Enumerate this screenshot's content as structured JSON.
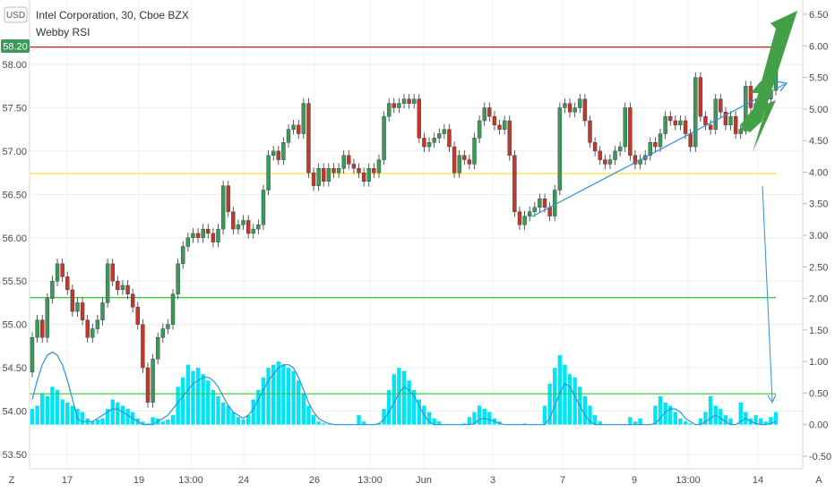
{
  "chart_data": {
    "type": "candlestick",
    "title": "Intel Corporation, 30, Cboe BZX",
    "indicator": "Webby RSI",
    "currency": "USD",
    "axis_mode_left": "Z",
    "axis_mode_right": "A",
    "last_price": "58.20",
    "colors": {
      "up": "#3a9a5a",
      "down": "#c0392b",
      "resistance": "#b71c1c",
      "support_yellow": "#f5e11a",
      "rsi_lines": "#2ecc2e",
      "trend": "#2f8fd8",
      "volume": "#00e5f5",
      "arrow": "#43a047",
      "price_tag": "#3a9a5a"
    },
    "price_axis": {
      "ticks": [
        "58.00",
        "57.50",
        "57.00",
        "56.50",
        "56.00",
        "55.50",
        "55.00",
        "54.50",
        "54.00",
        "53.50"
      ],
      "range": [
        53.45,
        58.4
      ]
    },
    "rsi_axis": {
      "ticks": [
        "6.50",
        "6.00",
        "5.50",
        "5.00",
        "4.50",
        "4.00",
        "3.50",
        "3.00",
        "2.50",
        "2.00",
        "1.50",
        "1.00",
        "0.50",
        "0.00",
        "-0.50"
      ],
      "range": [
        -0.5,
        6.5
      ]
    },
    "x_labels": [
      "17",
      "19",
      "13:00",
      "24",
      "26",
      "13:00",
      "Jun",
      "3",
      "7",
      "9",
      "13:00",
      "14"
    ],
    "horizontal_levels": [
      {
        "name": "resistance",
        "price": 58.2
      },
      {
        "name": "yellow-support",
        "price": 56.74
      },
      {
        "name": "green-upper",
        "price": 55.31
      },
      {
        "name": "green-lower",
        "price": 54.2
      }
    ],
    "candles": [
      [
        54.45,
        54.85
      ],
      [
        54.85,
        55.05
      ],
      [
        55.05,
        54.85
      ],
      [
        54.85,
        55.3
      ],
      [
        55.3,
        55.5
      ],
      [
        55.5,
        55.7
      ],
      [
        55.7,
        55.55
      ],
      [
        55.55,
        55.4
      ],
      [
        55.4,
        55.15
      ],
      [
        55.15,
        55.25
      ],
      [
        55.25,
        55.05
      ],
      [
        55.05,
        54.85
      ],
      [
        54.85,
        54.95
      ],
      [
        54.95,
        55.05
      ],
      [
        55.05,
        55.25
      ],
      [
        55.25,
        55.7
      ],
      [
        55.7,
        55.5
      ],
      [
        55.5,
        55.4
      ],
      [
        55.4,
        55.45
      ],
      [
        55.45,
        55.35
      ],
      [
        55.35,
        55.2
      ],
      [
        55.2,
        55.0
      ],
      [
        55.0,
        54.5
      ],
      [
        54.5,
        54.1
      ],
      [
        54.1,
        54.6
      ],
      [
        54.6,
        54.85
      ],
      [
        54.85,
        54.95
      ],
      [
        54.95,
        55.0
      ],
      [
        55.0,
        55.35
      ],
      [
        55.35,
        55.7
      ],
      [
        55.7,
        55.9
      ],
      [
        55.9,
        56.0
      ],
      [
        56.0,
        56.05
      ],
      [
        56.05,
        56.0
      ],
      [
        56.0,
        56.1
      ],
      [
        56.1,
        56.05
      ],
      [
        56.05,
        55.95
      ],
      [
        55.95,
        56.1
      ],
      [
        56.1,
        56.6
      ],
      [
        56.6,
        56.3
      ],
      [
        56.3,
        56.1
      ],
      [
        56.1,
        56.15
      ],
      [
        56.15,
        56.2
      ],
      [
        56.2,
        56.05
      ],
      [
        56.05,
        56.1
      ],
      [
        56.1,
        56.15
      ],
      [
        56.15,
        56.55
      ],
      [
        56.55,
        56.95
      ],
      [
        56.95,
        57.0
      ],
      [
        57.0,
        56.9
      ],
      [
        56.9,
        57.1
      ],
      [
        57.1,
        57.25
      ],
      [
        57.25,
        57.3
      ],
      [
        57.3,
        57.2
      ],
      [
        57.2,
        57.55
      ],
      [
        57.55,
        56.75
      ],
      [
        56.75,
        56.6
      ],
      [
        56.6,
        56.8
      ],
      [
        56.8,
        56.65
      ],
      [
        56.65,
        56.8
      ],
      [
        56.8,
        56.75
      ],
      [
        56.75,
        56.8
      ],
      [
        56.8,
        56.95
      ],
      [
        56.95,
        56.85
      ],
      [
        56.85,
        56.8
      ],
      [
        56.8,
        56.75
      ],
      [
        56.75,
        56.65
      ],
      [
        56.65,
        56.8
      ],
      [
        56.8,
        56.75
      ],
      [
        56.75,
        56.9
      ],
      [
        56.9,
        57.4
      ],
      [
        57.4,
        57.55
      ],
      [
        57.55,
        57.5
      ],
      [
        57.5,
        57.55
      ],
      [
        57.55,
        57.6
      ],
      [
        57.6,
        57.55
      ],
      [
        57.55,
        57.6
      ],
      [
        57.6,
        57.15
      ],
      [
        57.15,
        57.05
      ],
      [
        57.05,
        57.1
      ],
      [
        57.1,
        57.15
      ],
      [
        57.15,
        57.2
      ],
      [
        57.2,
        57.25
      ],
      [
        57.25,
        57.05
      ],
      [
        57.05,
        56.75
      ],
      [
        56.75,
        56.95
      ],
      [
        56.95,
        56.9
      ],
      [
        56.9,
        56.85
      ],
      [
        56.85,
        57.15
      ],
      [
        57.15,
        57.35
      ],
      [
        57.35,
        57.5
      ],
      [
        57.5,
        57.4
      ],
      [
        57.4,
        57.3
      ],
      [
        57.3,
        57.25
      ],
      [
        57.25,
        57.35
      ],
      [
        57.35,
        56.95
      ],
      [
        56.95,
        56.3
      ],
      [
        56.3,
        56.15
      ],
      [
        56.15,
        56.25
      ],
      [
        56.25,
        56.3
      ],
      [
        56.3,
        56.35
      ],
      [
        56.35,
        56.45
      ],
      [
        56.45,
        56.35
      ],
      [
        56.35,
        56.25
      ],
      [
        56.25,
        56.55
      ],
      [
        56.55,
        57.5
      ],
      [
        57.5,
        57.55
      ],
      [
        57.55,
        57.45
      ],
      [
        57.45,
        57.5
      ],
      [
        57.5,
        57.6
      ],
      [
        57.6,
        57.35
      ],
      [
        57.35,
        57.1
      ],
      [
        57.1,
        57.0
      ],
      [
        57.0,
        56.9
      ],
      [
        56.9,
        56.85
      ],
      [
        56.85,
        56.9
      ],
      [
        56.9,
        57.0
      ],
      [
        57.0,
        57.05
      ],
      [
        57.05,
        57.5
      ],
      [
        57.5,
        56.95
      ],
      [
        56.95,
        56.85
      ],
      [
        56.85,
        56.9
      ],
      [
        56.9,
        56.95
      ],
      [
        56.95,
        57.1
      ],
      [
        57.1,
        57.05
      ],
      [
        57.05,
        57.2
      ],
      [
        57.2,
        57.4
      ],
      [
        57.4,
        57.35
      ],
      [
        57.35,
        57.3
      ],
      [
        57.3,
        57.35
      ],
      [
        57.35,
        57.2
      ],
      [
        57.2,
        57.05
      ],
      [
        57.05,
        57.85
      ],
      [
        57.85,
        57.4
      ],
      [
        57.4,
        57.3
      ],
      [
        57.3,
        57.25
      ],
      [
        57.25,
        57.6
      ],
      [
        57.6,
        57.45
      ],
      [
        57.45,
        57.3
      ],
      [
        57.3,
        57.4
      ],
      [
        57.4,
        57.2
      ],
      [
        57.2,
        57.25
      ],
      [
        57.25,
        57.75
      ],
      [
        57.75,
        57.5
      ],
      [
        57.5,
        57.55
      ],
      [
        57.55,
        57.5
      ],
      [
        57.5,
        57.6
      ],
      [
        57.6,
        57.7
      ],
      [
        57.7,
        58.15
      ]
    ],
    "volume": [
      0.25,
      0.3,
      0.5,
      0.45,
      0.6,
      0.55,
      0.4,
      0.35,
      0.3,
      0.25,
      0.2,
      0.1,
      0.05,
      0.08,
      0.1,
      0.25,
      0.4,
      0.35,
      0.3,
      0.25,
      0.2,
      0.1,
      0.05,
      0.02,
      0.12,
      0.1,
      0.05,
      0.08,
      0.15,
      0.6,
      0.75,
      0.95,
      0.85,
      0.9,
      0.8,
      0.7,
      0.55,
      0.45,
      0.35,
      0.3,
      0.2,
      0.12,
      0.08,
      0.15,
      0.4,
      0.55,
      0.75,
      0.9,
      0.95,
      1.0,
      0.95,
      0.9,
      0.85,
      0.7,
      0.5,
      0.3,
      0.15,
      0.05,
      0.02,
      0.01,
      0.0,
      0.0,
      0.0,
      0.01,
      0.0,
      0.15,
      0.05,
      0.0,
      0.0,
      0.02,
      0.25,
      0.55,
      0.8,
      0.9,
      0.85,
      0.7,
      0.55,
      0.4,
      0.3,
      0.2,
      0.1,
      0.05,
      0.0,
      0.0,
      0.0,
      0.0,
      0.02,
      0.12,
      0.2,
      0.3,
      0.25,
      0.2,
      0.1,
      0.05,
      0.0,
      0.0,
      0.0,
      0.0,
      0.02,
      0.0,
      0.0,
      0.0,
      0.3,
      0.65,
      0.9,
      1.1,
      0.95,
      0.8,
      0.75,
      0.6,
      0.45,
      0.3,
      0.15,
      0.05,
      0.0,
      0.0,
      0.0,
      0.0,
      0.0,
      0.12,
      0.05,
      0.1,
      0.0,
      0.0,
      0.3,
      0.45,
      0.35,
      0.3,
      0.2,
      0.1,
      0.05,
      0.02,
      0.0,
      0.1,
      0.2,
      0.45,
      0.3,
      0.25,
      0.15,
      0.1,
      0.0,
      0.35,
      0.2,
      0.1,
      0.15,
      0.1,
      0.05,
      0.12,
      0.2
    ],
    "rsi_line": [
      0.4,
      0.7,
      0.95,
      1.1,
      1.15,
      1.1,
      0.95,
      0.7,
      0.4,
      0.1,
      0.05,
      0.05,
      0.05,
      0.1,
      0.15,
      0.2,
      0.25,
      0.25,
      0.2,
      0.15,
      0.1,
      0.05,
      0.0,
      0.0,
      0.0,
      0.05,
      0.1,
      0.15,
      0.25,
      0.35,
      0.45,
      0.55,
      0.65,
      0.7,
      0.75,
      0.75,
      0.7,
      0.6,
      0.45,
      0.3,
      0.2,
      0.15,
      0.1,
      0.15,
      0.25,
      0.4,
      0.55,
      0.7,
      0.8,
      0.9,
      0.95,
      0.95,
      0.9,
      0.75,
      0.55,
      0.35,
      0.2,
      0.1,
      0.05,
      0.02,
      0.0,
      0.0,
      0.0,
      0.0,
      0.0,
      0.0,
      0.0,
      0.0,
      0.0,
      0.02,
      0.08,
      0.2,
      0.35,
      0.5,
      0.6,
      0.55,
      0.45,
      0.3,
      0.15,
      0.05,
      0.0,
      0.0,
      0.0,
      0.0,
      0.0,
      0.0,
      0.0,
      0.0,
      0.02,
      0.08,
      0.1,
      0.08,
      0.05,
      0.02,
      0.0,
      0.0,
      0.0,
      0.0,
      0.0,
      0.0,
      0.0,
      0.0,
      0.0,
      0.1,
      0.3,
      0.5,
      0.65,
      0.6,
      0.45,
      0.3,
      0.15,
      0.05,
      0.0,
      0.0,
      0.0,
      0.0,
      0.0,
      0.0,
      0.0,
      0.0,
      0.0,
      0.0,
      0.0,
      0.0,
      0.02,
      0.1,
      0.2,
      0.25,
      0.25,
      0.2,
      0.1,
      0.05,
      0.0,
      0.0,
      0.05,
      0.1,
      0.15,
      0.1,
      0.05,
      0.0,
      0.0,
      0.05,
      0.1,
      0.05,
      0.02,
      0.0,
      0.0,
      0.02,
      0.05
    ]
  }
}
